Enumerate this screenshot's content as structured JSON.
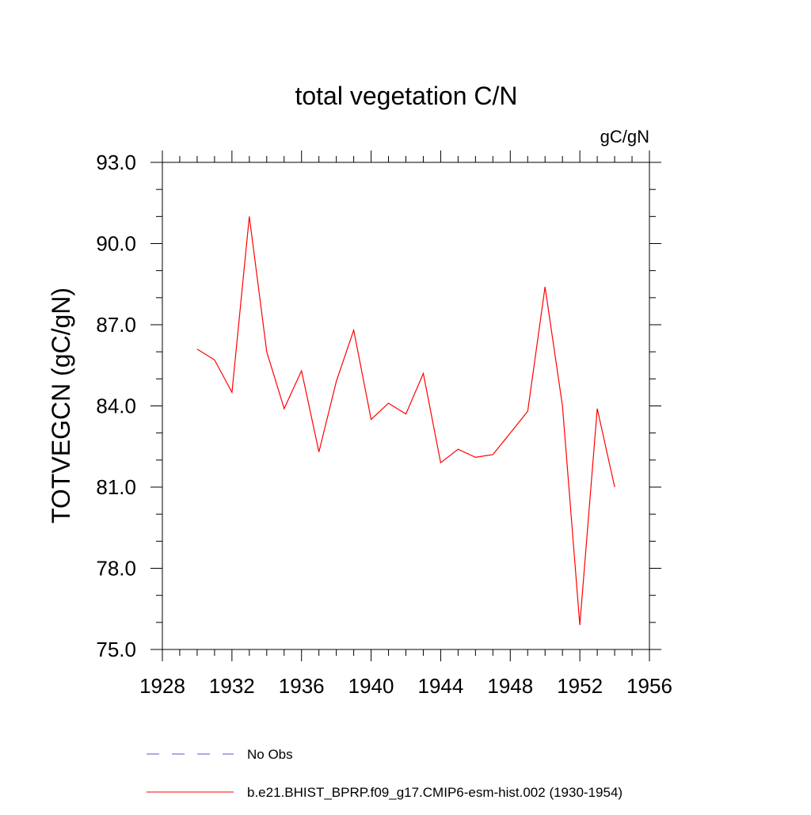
{
  "chart_data": {
    "type": "line",
    "title": "total vegetation C/N",
    "units_label": "gC/gN",
    "ylabel": "TOTVEGCN  (gC/gN)",
    "xlabel": "",
    "xlim": [
      1928,
      1956
    ],
    "ylim": [
      75.0,
      93.0
    ],
    "x_ticks": [
      1928,
      1932,
      1936,
      1940,
      1944,
      1948,
      1952,
      1956
    ],
    "x_tick_labels": [
      "1928",
      "1932",
      "1936",
      "1940",
      "1944",
      "1948",
      "1952",
      "1956"
    ],
    "x_minor_step": 1,
    "y_ticks": [
      75.0,
      78.0,
      81.0,
      84.0,
      87.0,
      90.0,
      93.0
    ],
    "y_tick_labels": [
      "75.0",
      "78.0",
      "81.0",
      "84.0",
      "87.0",
      "90.0",
      "93.0"
    ],
    "y_minor_step": 1.0,
    "grid": false,
    "legend_position": "bottom",
    "series": [
      {
        "name": "b.e21.BHIST_BPRP.f09_g17.CMIP6-esm-hist.002 (1930-1954)",
        "color": "#ff0000",
        "style": "solid",
        "x": [
          1930,
          1931,
          1932,
          1933,
          1934,
          1935,
          1936,
          1937,
          1938,
          1939,
          1940,
          1941,
          1942,
          1943,
          1944,
          1945,
          1946,
          1947,
          1948,
          1949,
          1950,
          1951,
          1952,
          1953,
          1954
        ],
        "y": [
          86.1,
          85.7,
          84.5,
          91.0,
          86.0,
          83.9,
          85.3,
          82.3,
          84.9,
          86.8,
          83.5,
          84.1,
          83.7,
          85.2,
          81.9,
          82.4,
          82.1,
          82.2,
          83.0,
          83.8,
          88.4,
          84.0,
          75.9,
          83.9,
          81.0
        ]
      }
    ],
    "legend": [
      {
        "label": "No Obs",
        "color": "#5555cc",
        "style": "dashed"
      },
      {
        "label": "b.e21.BHIST_BPRP.f09_g17.CMIP6-esm-hist.002 (1930-1954)",
        "color": "#ff0000",
        "style": "solid"
      }
    ]
  }
}
